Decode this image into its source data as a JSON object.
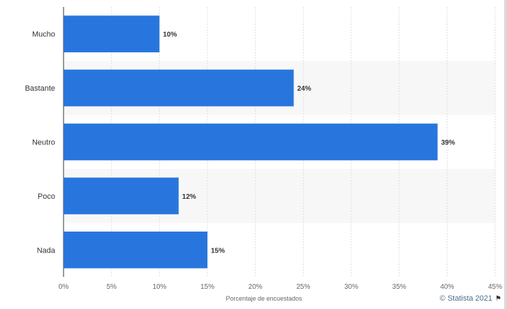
{
  "chart_data": {
    "type": "bar",
    "orientation": "horizontal",
    "categories": [
      "Mucho",
      "Bastante",
      "Neutro",
      "Poco",
      "Nada"
    ],
    "values": [
      10,
      24,
      39,
      12,
      15
    ],
    "value_labels": [
      "10%",
      "24%",
      "39%",
      "12%",
      "15%"
    ],
    "xlabel": "Porcentaje de encuestados",
    "xlim": [
      0,
      45
    ],
    "xticks": [
      "0%",
      "5%",
      "10%",
      "15%",
      "20%",
      "25%",
      "30%",
      "35%",
      "40%",
      "45%"
    ],
    "grid": true,
    "bar_color": "#2876dd"
  },
  "credit": {
    "text": "© Statista 2021",
    "flag_icon": "flag-icon"
  }
}
